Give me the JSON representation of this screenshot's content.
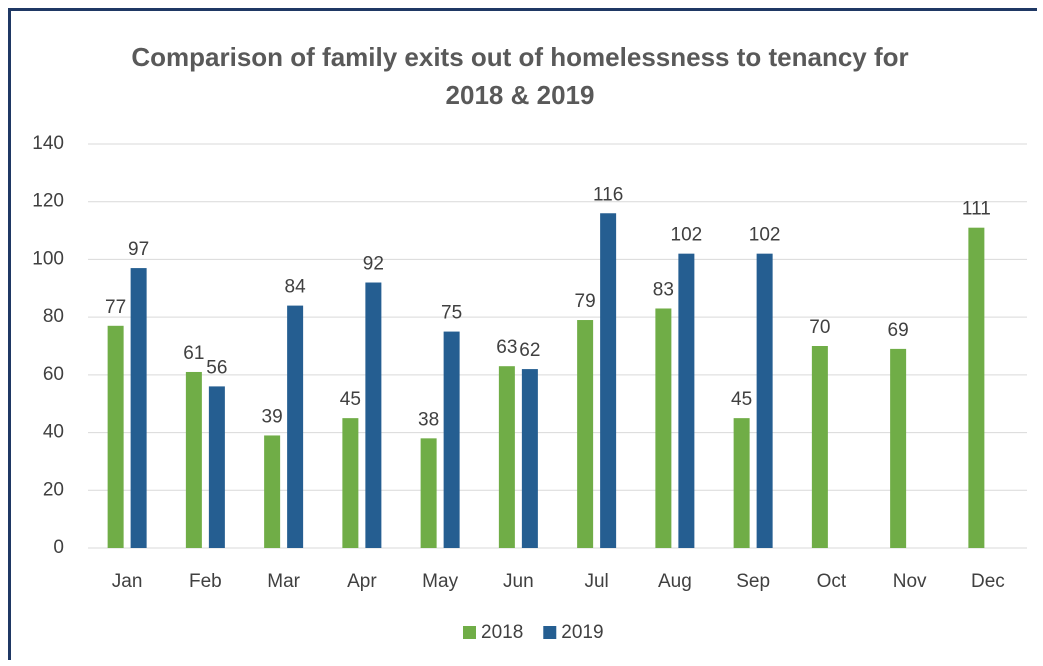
{
  "chart_data": {
    "type": "bar",
    "title": "Comparison of family exits out of homelessness to tenancy for 2018 & 2019",
    "categories": [
      "Jan",
      "Feb",
      "Mar",
      "Apr",
      "May",
      "Jun",
      "Jul",
      "Aug",
      "Sep",
      "Oct",
      "Nov",
      "Dec"
    ],
    "series": [
      {
        "name": "2018",
        "color": "#70ad47",
        "values": [
          77,
          61,
          39,
          45,
          38,
          63,
          79,
          83,
          45,
          70,
          69,
          111
        ]
      },
      {
        "name": "2019",
        "color": "#255e91",
        "values": [
          97,
          56,
          84,
          92,
          75,
          62,
          116,
          102,
          102,
          null,
          null,
          null
        ]
      }
    ],
    "ylim": [
      0,
      140
    ],
    "yticks": [
      0,
      20,
      40,
      60,
      80,
      100,
      120,
      140
    ],
    "grid": true,
    "legend": "bottom"
  }
}
